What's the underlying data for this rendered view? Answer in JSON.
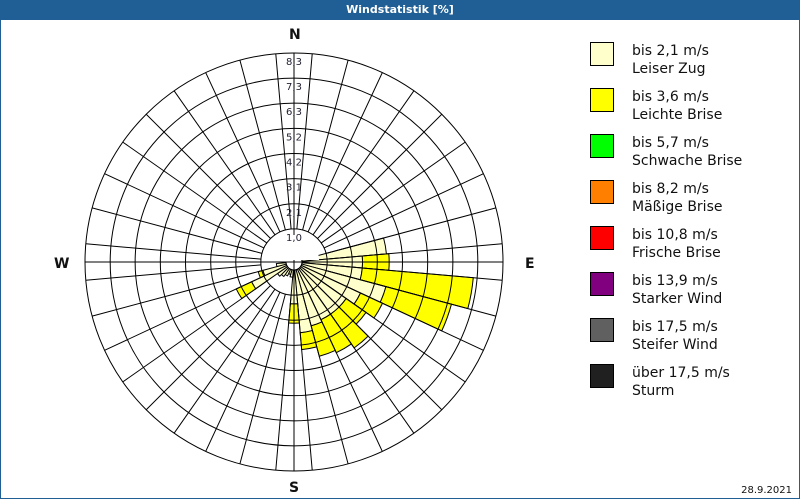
{
  "window": {
    "title": "Windstatistik [%]"
  },
  "compass": {
    "n": "N",
    "e": "E",
    "s": "S",
    "w": "W"
  },
  "date": "28.9.2021",
  "legend": [
    {
      "range": "bis 2,1 m/s",
      "name": "Leiser Zug",
      "color": "#ffffcc"
    },
    {
      "range": "bis 3,6 m/s",
      "name": "Leichte Brise",
      "color": "#ffff00"
    },
    {
      "range": "bis 5,7 m/s",
      "name": "Schwache Brise",
      "color": "#00ff00"
    },
    {
      "range": "bis 8,2 m/s",
      "name": "Mäßige Brise",
      "color": "#ff8000"
    },
    {
      "range": "bis 10,8 m/s",
      "name": "Frische Brise",
      "color": "#ff0000"
    },
    {
      "range": "bis 13,9 m/s",
      "name": "Starker Wind",
      "color": "#800080"
    },
    {
      "range": "bis 17,5 m/s",
      "name": "Steifer Wind",
      "color": "#606060"
    },
    {
      "range": "über 17,5 m/s",
      "name": "Sturm",
      "color": "#202020"
    }
  ],
  "chart_data": {
    "type": "wind_rose",
    "title": "Windstatistik [%]",
    "radial_unit": "%",
    "radial_ticks": [
      "1,0",
      "2,1",
      "3,1",
      "4,2",
      "5,2",
      "6,3",
      "7,3",
      "8,3"
    ],
    "radial_max": 8.3,
    "sector_width_deg": 10,
    "directions_deg": [
      0,
      10,
      20,
      30,
      40,
      50,
      60,
      70,
      80,
      90,
      100,
      110,
      120,
      130,
      140,
      150,
      160,
      170,
      180,
      190,
      200,
      210,
      220,
      230,
      240,
      250,
      260,
      270,
      280,
      290,
      300,
      310,
      320,
      330,
      340,
      350
    ],
    "series": [
      {
        "name": "bis 2,1 m/s (Leiser Zug)",
        "values": [
          0,
          0,
          0,
          0,
          0,
          0,
          0,
          0,
          3.5,
          2.5,
          2.5,
          3.6,
          2.7,
          2.3,
          2.3,
          2.3,
          2.4,
          2.6,
          1.4,
          0.3,
          0.2,
          0.3,
          0.4,
          0.5,
          1.6,
          1.0,
          0.4,
          0,
          0,
          0,
          0,
          0,
          0,
          0,
          0,
          0
        ]
      },
      {
        "name": "bis 3,6 m/s (Leichte Brise)",
        "values": [
          0,
          0,
          0,
          0,
          0,
          0,
          0,
          0,
          0,
          1.1,
          4.6,
          2.8,
          1.0,
          1.0,
          1.7,
          1.5,
          1.3,
          0.7,
          0.8,
          0,
          0,
          0,
          0,
          0,
          0.7,
          0.2,
          0,
          0,
          0,
          0,
          0,
          0,
          0,
          0,
          0,
          0
        ]
      }
    ],
    "legend_position": "right"
  }
}
